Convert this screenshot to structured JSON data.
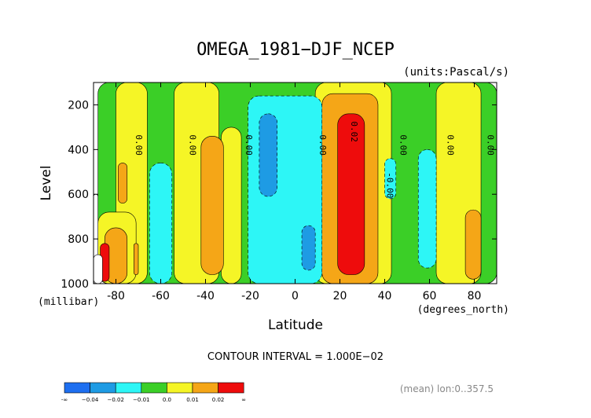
{
  "chart_data": {
    "type": "heatmap",
    "title": "OMEGA_1981−DJF_NCEP",
    "units": "(units:Pascal/s)",
    "xlabel": "Latitude",
    "ylabel": "Level",
    "x_unit": "(degrees_north)",
    "y_unit": "(millibar)",
    "xlim": [
      -90,
      90
    ],
    "ylim": [
      1000,
      100
    ],
    "x_ticks": [
      "-80",
      "-60",
      "-40",
      "-20",
      "0",
      "20",
      "40",
      "60",
      "80"
    ],
    "x_tick_values": [
      -80,
      -60,
      -40,
      -20,
      0,
      20,
      40,
      60,
      80
    ],
    "y_ticks": [
      "200",
      "400",
      "600",
      "800",
      "1000"
    ],
    "y_tick_values": [
      200,
      400,
      600,
      800,
      1000
    ],
    "contour_interval": "CONTOUR INTERVAL = 1.000E−02",
    "footnote": "(mean) lon:0..357.5",
    "contour_labels": [
      {
        "text": "0.00",
        "lat": -71,
        "lev": 380
      },
      {
        "text": "0.00",
        "lat": -47,
        "lev": 380
      },
      {
        "text": "0.00",
        "lat": -22,
        "lev": 380
      },
      {
        "text": "0.00",
        "lat": 11,
        "lev": 380
      },
      {
        "text": "0.02",
        "lat": 25,
        "lev": 320
      },
      {
        "text": "0.00",
        "lat": 47,
        "lev": 380
      },
      {
        "text": "0.00",
        "lat": 68,
        "lev": 380
      },
      {
        "text": "0.00",
        "lat": 86,
        "lev": 380
      },
      {
        "text": "-0.00",
        "lat": 41,
        "lev": 560
      }
    ],
    "bands": [
      {
        "color": "#3bcf27",
        "lat_min": -88,
        "lat_max": 90,
        "lev_min": 100,
        "lev_max": 1000
      },
      {
        "color": "#f5f526",
        "lat_min": -80,
        "lat_max": -66,
        "lev_min": 100,
        "lev_max": 1000
      },
      {
        "color": "#f5f526",
        "lat_min": -54,
        "lat_max": -34,
        "lev_min": 100,
        "lev_max": 1000
      },
      {
        "color": "#f5f526",
        "lat_min": -33,
        "lat_max": -24,
        "lev_min": 300,
        "lev_max": 1000
      },
      {
        "color": "#f5f526",
        "lat_min": 9,
        "lat_max": 43,
        "lev_min": 100,
        "lev_max": 1000
      },
      {
        "color": "#f5f526",
        "lat_min": 63,
        "lat_max": 83,
        "lev_min": 100,
        "lev_max": 1000
      },
      {
        "color": "#f5f526",
        "lat_min": -88,
        "lat_max": -71,
        "lev_min": 680,
        "lev_max": 1000
      },
      {
        "color": "#f5a617",
        "lat_min": 12,
        "lat_max": 37,
        "lev_min": 150,
        "lev_max": 1000
      },
      {
        "color": "#f5a617",
        "lat_min": -42,
        "lat_max": -32,
        "lev_min": 340,
        "lev_max": 960
      },
      {
        "color": "#f5a617",
        "lat_min": -79,
        "lat_max": -75,
        "lev_min": 460,
        "lev_max": 640
      },
      {
        "color": "#f5a617",
        "lat_min": -85,
        "lat_max": -75,
        "lev_min": 750,
        "lev_max": 1000
      },
      {
        "color": "#f5a617",
        "lat_min": 76,
        "lat_max": 83,
        "lev_min": 670,
        "lev_max": 980
      },
      {
        "color": "#f5a617",
        "lat_min": -72,
        "lat_max": -70,
        "lev_min": 820,
        "lev_max": 960
      },
      {
        "color": "#ee0c0c",
        "lat_min": 19,
        "lat_max": 31,
        "lev_min": 240,
        "lev_max": 960
      },
      {
        "color": "#ee0c0c",
        "lat_min": -87,
        "lat_max": -83,
        "lev_min": 820,
        "lev_max": 990
      },
      {
        "color": "#2df6f6",
        "lat_min": -21,
        "lat_max": 12,
        "lev_min": 160,
        "lev_max": 1000
      },
      {
        "color": "#2df6f6",
        "lat_min": -65,
        "lat_max": -55,
        "lev_min": 460,
        "lev_max": 1000
      },
      {
        "color": "#2df6f6",
        "lat_min": 55,
        "lat_max": 63,
        "lev_min": 400,
        "lev_max": 930
      },
      {
        "color": "#2df6f6",
        "lat_min": 40,
        "lat_max": 45,
        "lev_min": 440,
        "lev_max": 620
      },
      {
        "color": "#1e9be4",
        "lat_min": -16,
        "lat_max": -8,
        "lev_min": 240,
        "lev_max": 610
      },
      {
        "color": "#1e9be4",
        "lat_min": 3,
        "lat_max": 9,
        "lev_min": 740,
        "lev_max": 940
      },
      {
        "color": "#ffffff",
        "lat_min": -90,
        "lat_max": -88,
        "lev_min": 600,
        "lev_max": 1000
      },
      {
        "color": "#ffffff",
        "lat_min": -90,
        "lat_max": -86,
        "lev_min": 870,
        "lev_max": 1000
      }
    ],
    "legend": {
      "colors": [
        "#1e6ff0",
        "#1e9be4",
        "#2df6f6",
        "#3bcf27",
        "#f5f526",
        "#f5a617",
        "#ee0c0c"
      ],
      "labels": [
        "-∞",
        "−0.04",
        "−0.02",
        "−0.01",
        "0.0",
        "0.01",
        "0.02",
        "∞"
      ]
    }
  }
}
